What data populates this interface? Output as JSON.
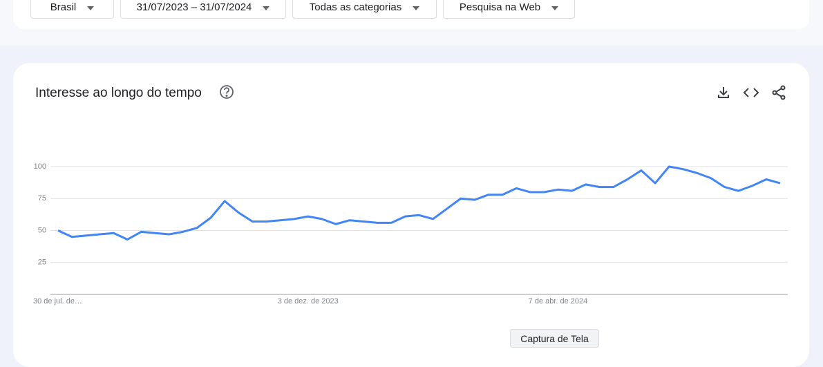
{
  "filters": [
    "Brasil",
    "31/07/2023 – 31/07/2024",
    "Todas as categorias",
    "Pesquisa na Web"
  ],
  "tooltip": "Captura de Tela",
  "chart_data": {
    "type": "line",
    "title": "Interesse ao longo do tempo",
    "categories": [
      "30 de jul. de…",
      null,
      null,
      null,
      null,
      null,
      null,
      null,
      null,
      null,
      null,
      null,
      null,
      null,
      null,
      null,
      null,
      null,
      "3 de dez. de 2023",
      null,
      null,
      null,
      null,
      null,
      null,
      null,
      null,
      null,
      null,
      null,
      null,
      null,
      null,
      null,
      null,
      null,
      "7 de abr. de 2024",
      null,
      null,
      null,
      null,
      null,
      null,
      null,
      null,
      null,
      null,
      null,
      null,
      null,
      null,
      null,
      null
    ],
    "values": [
      50,
      45,
      46,
      47,
      48,
      43,
      49,
      48,
      47,
      49,
      52,
      60,
      73,
      64,
      57,
      57,
      58,
      59,
      61,
      59,
      55,
      58,
      57,
      56,
      56,
      61,
      62,
      59,
      67,
      75,
      74,
      78,
      78,
      83,
      80,
      80,
      82,
      81,
      86,
      84,
      84,
      90,
      97,
      87,
      100,
      98,
      95,
      91,
      84,
      81,
      85,
      90,
      87
    ],
    "color": "#4285f4",
    "ylim": [
      0,
      100
    ],
    "yticks": [
      25,
      50,
      75,
      100
    ],
    "grid": true
  }
}
